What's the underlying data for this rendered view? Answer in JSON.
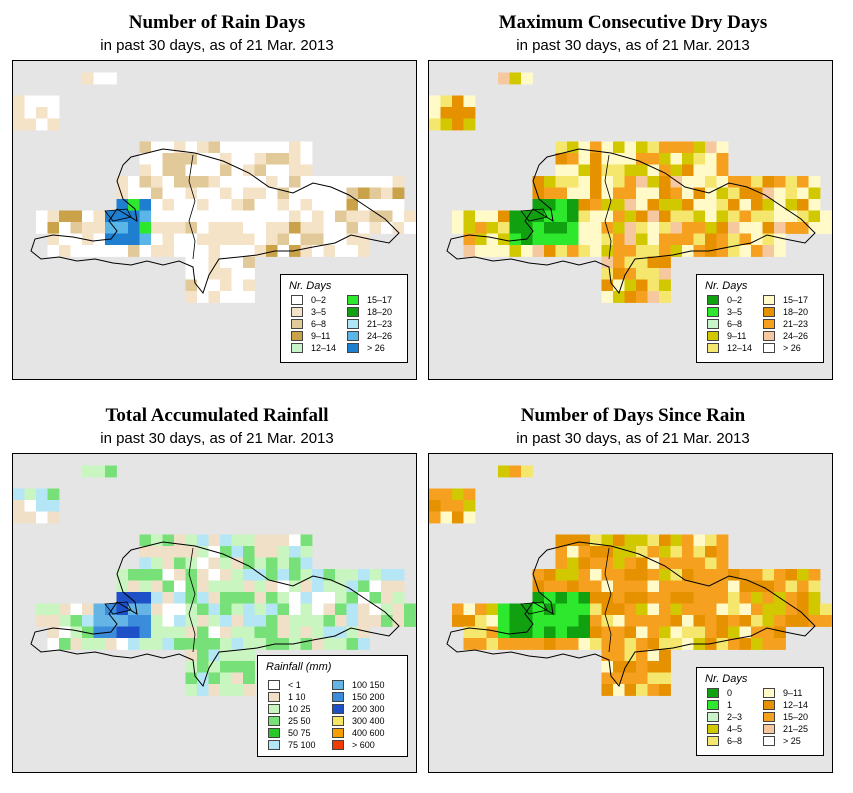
{
  "panels": [
    {
      "title": "Number of Rain Days",
      "subtitle": "in past 30 days, as of  21 Mar. 2013",
      "legend_title": "Nr. Days",
      "legend": [
        {
          "label": "0–2",
          "color": "#ffffff"
        },
        {
          "label": "3–5",
          "color": "#f5e3c8"
        },
        {
          "label": "6–8",
          "color": "#e2c99a"
        },
        {
          "label": "9–11",
          "color": "#c9a24a"
        },
        {
          "label": "12–14",
          "color": "#c8f5c8"
        },
        {
          "label": "15–17",
          "color": "#2ee82e"
        },
        {
          "label": "18–20",
          "color": "#10a010"
        },
        {
          "label": "21–23",
          "color": "#aee6f5"
        },
        {
          "label": "24–26",
          "color": "#5bb6e8"
        },
        {
          "label": "> 26",
          "color": "#1e7fd0"
        }
      ]
    },
    {
      "title": "Maximum Consecutive Dry Days",
      "subtitle": "in past 30 days, as of  21 Mar. 2013",
      "legend_title": "Nr. Days",
      "legend": [
        {
          "label": "0–2",
          "color": "#10a010"
        },
        {
          "label": "3–5",
          "color": "#2ee82e"
        },
        {
          "label": "6–8",
          "color": "#c8f5c8"
        },
        {
          "label": "9–11",
          "color": "#d2c800"
        },
        {
          "label": "12–14",
          "color": "#f5e66e"
        },
        {
          "label": "15–17",
          "color": "#fffac8"
        },
        {
          "label": "18–20",
          "color": "#e69100"
        },
        {
          "label": "21–23",
          "color": "#f5a01e"
        },
        {
          "label": "24–26",
          "color": "#f5c8a0"
        },
        {
          "label": "> 26",
          "color": "#ffffff"
        }
      ]
    },
    {
      "title": "Total Accumulated Rainfall",
      "subtitle": "in past 30 days, as of  21 Mar. 2013",
      "legend_title": "Rainfall (mm)",
      "legend": [
        {
          "label": "< 1",
          "color": "#ffffff"
        },
        {
          "label": "1    10",
          "color": "#f0e0c8"
        },
        {
          "label": "10    25",
          "color": "#c8f5c0"
        },
        {
          "label": "25    50",
          "color": "#78e078"
        },
        {
          "label": "50    75",
          "color": "#28c828"
        },
        {
          "label": "75  100",
          "color": "#b4e6f5"
        },
        {
          "label": "100  150",
          "color": "#64b4e6"
        },
        {
          "label": "150  200",
          "color": "#3c8cdc"
        },
        {
          "label": "200  300",
          "color": "#1e50c8"
        },
        {
          "label": "300  400",
          "color": "#f5e664"
        },
        {
          "label": "400  600",
          "color": "#f5a000"
        },
        {
          "label": "> 600",
          "color": "#f03c00"
        }
      ]
    },
    {
      "title": "Number of Days Since Rain",
      "subtitle": "in past 30 days, as of  21 Mar. 2013",
      "legend_title": "Nr. Days",
      "legend": [
        {
          "label": "0",
          "color": "#10a010"
        },
        {
          "label": "1",
          "color": "#2ee82e"
        },
        {
          "label": "2–3",
          "color": "#c8f5c8"
        },
        {
          "label": "4–5",
          "color": "#d2c800"
        },
        {
          "label": "6–8",
          "color": "#f5e66e"
        },
        {
          "label": "9–11",
          "color": "#fffac8"
        },
        {
          "label": "12–14",
          "color": "#e69100"
        },
        {
          "label": "15–20",
          "color": "#f5a01e"
        },
        {
          "label": "21–25",
          "color": "#f5c8a0"
        },
        {
          "label": "> 25",
          "color": "#ffffff"
        }
      ]
    }
  ]
}
